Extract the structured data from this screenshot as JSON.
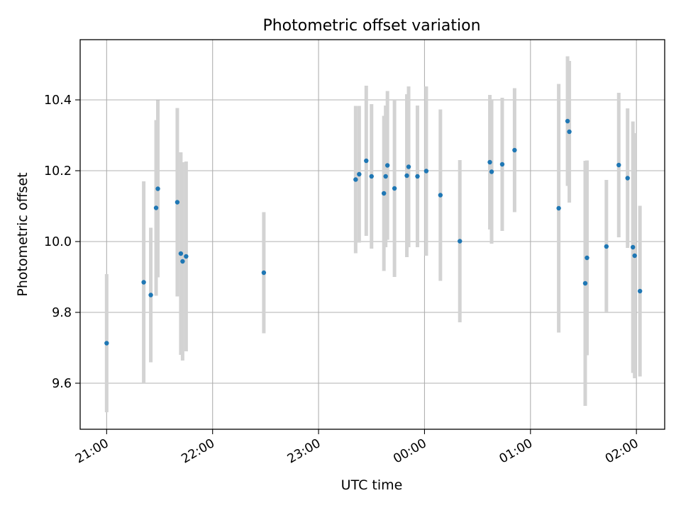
{
  "chart_data": {
    "type": "scatter",
    "title": "Photometric offset variation",
    "xlabel": "UTC time",
    "ylabel": "Photometric offset",
    "x_is_time": true,
    "x_unit": "UTC time of day (hours; values past 24 are after midnight)",
    "xlim": [
      "20:45",
      "02:16"
    ],
    "ylim": [
      9.47,
      10.57
    ],
    "x_ticks": [
      {
        "value": "21:00",
        "label": "21:00"
      },
      {
        "value": "22:00",
        "label": "22:00"
      },
      {
        "value": "23:00",
        "label": "23:00"
      },
      {
        "value": "00:00",
        "label": "00:00"
      },
      {
        "value": "01:00",
        "label": "01:00"
      },
      {
        "value": "02:00",
        "label": "02:00"
      }
    ],
    "y_ticks": [
      {
        "value": 9.6,
        "label": "9.6"
      },
      {
        "value": 9.8,
        "label": "9.8"
      },
      {
        "value": 10.0,
        "label": "10.0"
      },
      {
        "value": 10.2,
        "label": "10.2"
      },
      {
        "value": 10.4,
        "label": "10.4"
      }
    ],
    "grid": true,
    "x_tick_rotation_deg": 30,
    "series": [
      {
        "marker_color": "#1f77b4",
        "errorbar_color": "#d3d3d3",
        "points": [
          {
            "t": "21:00",
            "y": 9.713,
            "err": 0.195
          },
          {
            "t": "21:21",
            "y": 9.885,
            "err": 0.285
          },
          {
            "t": "21:25",
            "y": 9.849,
            "err": 0.19
          },
          {
            "t": "21:28",
            "y": 10.095,
            "err": 0.248
          },
          {
            "t": "21:29",
            "y": 10.149,
            "err": 0.25
          },
          {
            "t": "21:40",
            "y": 10.111,
            "err": 0.266
          },
          {
            "t": "21:42",
            "y": 9.966,
            "err": 0.286
          },
          {
            "t": "21:43",
            "y": 9.944,
            "err": 0.28
          },
          {
            "t": "21:45",
            "y": 9.958,
            "err": 0.268
          },
          {
            "t": "22:29",
            "y": 9.912,
            "err": 0.171
          },
          {
            "t": "23:21",
            "y": 10.175,
            "err": 0.208
          },
          {
            "t": "23:23",
            "y": 10.19,
            "err": 0.193
          },
          {
            "t": "23:27",
            "y": 10.228,
            "err": 0.212
          },
          {
            "t": "23:30",
            "y": 10.184,
            "err": 0.204
          },
          {
            "t": "23:37",
            "y": 10.136,
            "err": 0.219
          },
          {
            "t": "23:38",
            "y": 10.184,
            "err": 0.2
          },
          {
            "t": "23:39",
            "y": 10.215,
            "err": 0.21
          },
          {
            "t": "23:43",
            "y": 10.15,
            "err": 0.25
          },
          {
            "t": "23:50",
            "y": 10.186,
            "err": 0.23
          },
          {
            "t": "23:51",
            "y": 10.211,
            "err": 0.227
          },
          {
            "t": "23:56",
            "y": 10.184,
            "err": 0.2
          },
          {
            "t": "00:01",
            "y": 10.199,
            "err": 0.239
          },
          {
            "t": "00:09",
            "y": 10.131,
            "err": 0.242
          },
          {
            "t": "00:20",
            "y": 10.001,
            "err": 0.229
          },
          {
            "t": "00:37",
            "y": 10.224,
            "err": 0.19
          },
          {
            "t": "00:38",
            "y": 10.197,
            "err": 0.203
          },
          {
            "t": "00:44",
            "y": 10.218,
            "err": 0.188
          },
          {
            "t": "00:51",
            "y": 10.258,
            "err": 0.175
          },
          {
            "t": "01:16",
            "y": 10.094,
            "err": 0.351
          },
          {
            "t": "01:21",
            "y": 10.34,
            "err": 0.183
          },
          {
            "t": "01:22",
            "y": 10.31,
            "err": 0.2
          },
          {
            "t": "01:31",
            "y": 9.882,
            "err": 0.346
          },
          {
            "t": "01:32",
            "y": 9.954,
            "err": 0.275
          },
          {
            "t": "01:43",
            "y": 9.986,
            "err": 0.188
          },
          {
            "t": "01:50",
            "y": 10.216,
            "err": 0.204
          },
          {
            "t": "01:55",
            "y": 10.179,
            "err": 0.197
          },
          {
            "t": "01:58",
            "y": 9.984,
            "err": 0.355
          },
          {
            "t": "01:59",
            "y": 9.96,
            "err": 0.346
          },
          {
            "t": "02:02",
            "y": 9.86,
            "err": 0.241
          }
        ]
      }
    ]
  }
}
